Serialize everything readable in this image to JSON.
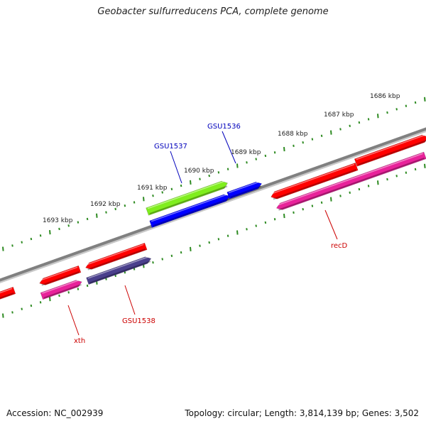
{
  "title": "Geobacter sulfurreducens PCA, complete genome",
  "footer": {
    "accession": "Accession: NC_002939",
    "summary": "Topology: circular; Length: 3,814,139 bp; Genes: 3,502"
  },
  "colors": {
    "backbone": "#808080",
    "tick": "#2e8b22",
    "gene_red": "#ff0000",
    "gene_magenta": "#e8229a",
    "gene_blue": "#0000ff",
    "gene_green": "#80ee1e",
    "gene_slate": "#4a3f8c",
    "label_blue": "#0000bb",
    "label_red": "#cc0000"
  },
  "scale": {
    "unit": "kbp",
    "labels": [
      "1686 kbp",
      "1687 kbp",
      "1688 kbp",
      "1689 kbp",
      "1690 kbp",
      "1691 kbp",
      "1692 kbp",
      "1693 kbp"
    ]
  },
  "genes": {
    "gsu1537": {
      "label": "GSU1537"
    },
    "gsu1536": {
      "label": "GSU1536"
    },
    "recd": {
      "label": "recD"
    },
    "gsu1538": {
      "label": "GSU1538"
    },
    "xth": {
      "label": "xth"
    }
  }
}
